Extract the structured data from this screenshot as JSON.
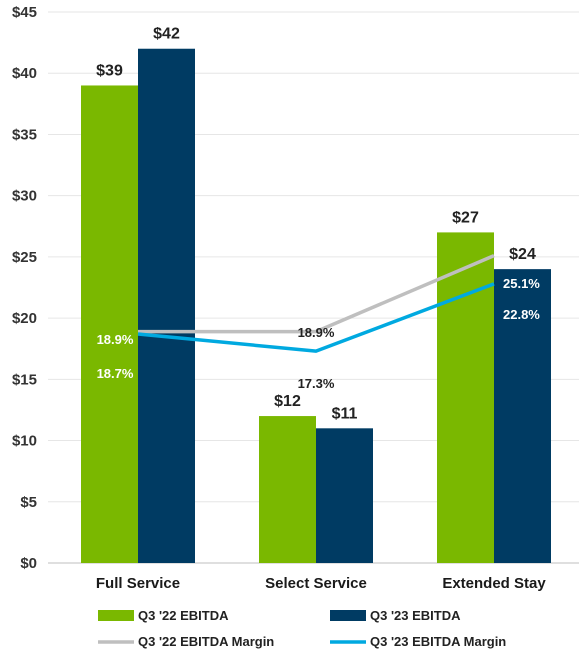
{
  "chart_data": {
    "type": "bar",
    "categories": [
      "Full Service",
      "Select Service",
      "Extended Stay"
    ],
    "yticks": [
      "$0",
      "$5",
      "$10",
      "$15",
      "$20",
      "$25",
      "$30",
      "$35",
      "$40",
      "$45"
    ],
    "ylim": [
      0,
      45
    ],
    "grid": true,
    "series": [
      {
        "name": "Q3 '22 EBITDA",
        "values": [
          39,
          12,
          27
        ],
        "labels": [
          "$39",
          "$12",
          "$27"
        ],
        "color": "#7ab800"
      },
      {
        "name": "Q3 '23  EBITDA",
        "values": [
          42,
          11,
          24
        ],
        "labels": [
          "$42",
          "$11",
          "$24"
        ],
        "color": "#003b63"
      }
    ],
    "margin_series": [
      {
        "name": "Q3 '22 EBITDA Margin",
        "values": [
          18.9,
          18.9,
          25.1
        ],
        "labels": [
          "18.9%",
          "18.9%",
          "25.1%"
        ],
        "color": "#bfbfbf"
      },
      {
        "name": "Q3 '23 EBITDA Margin",
        "values": [
          18.7,
          17.3,
          22.8
        ],
        "labels": [
          "18.7%",
          "17.3%",
          "22.8%"
        ],
        "color": "#00a9e0"
      }
    ],
    "legend_position": "bottom"
  }
}
